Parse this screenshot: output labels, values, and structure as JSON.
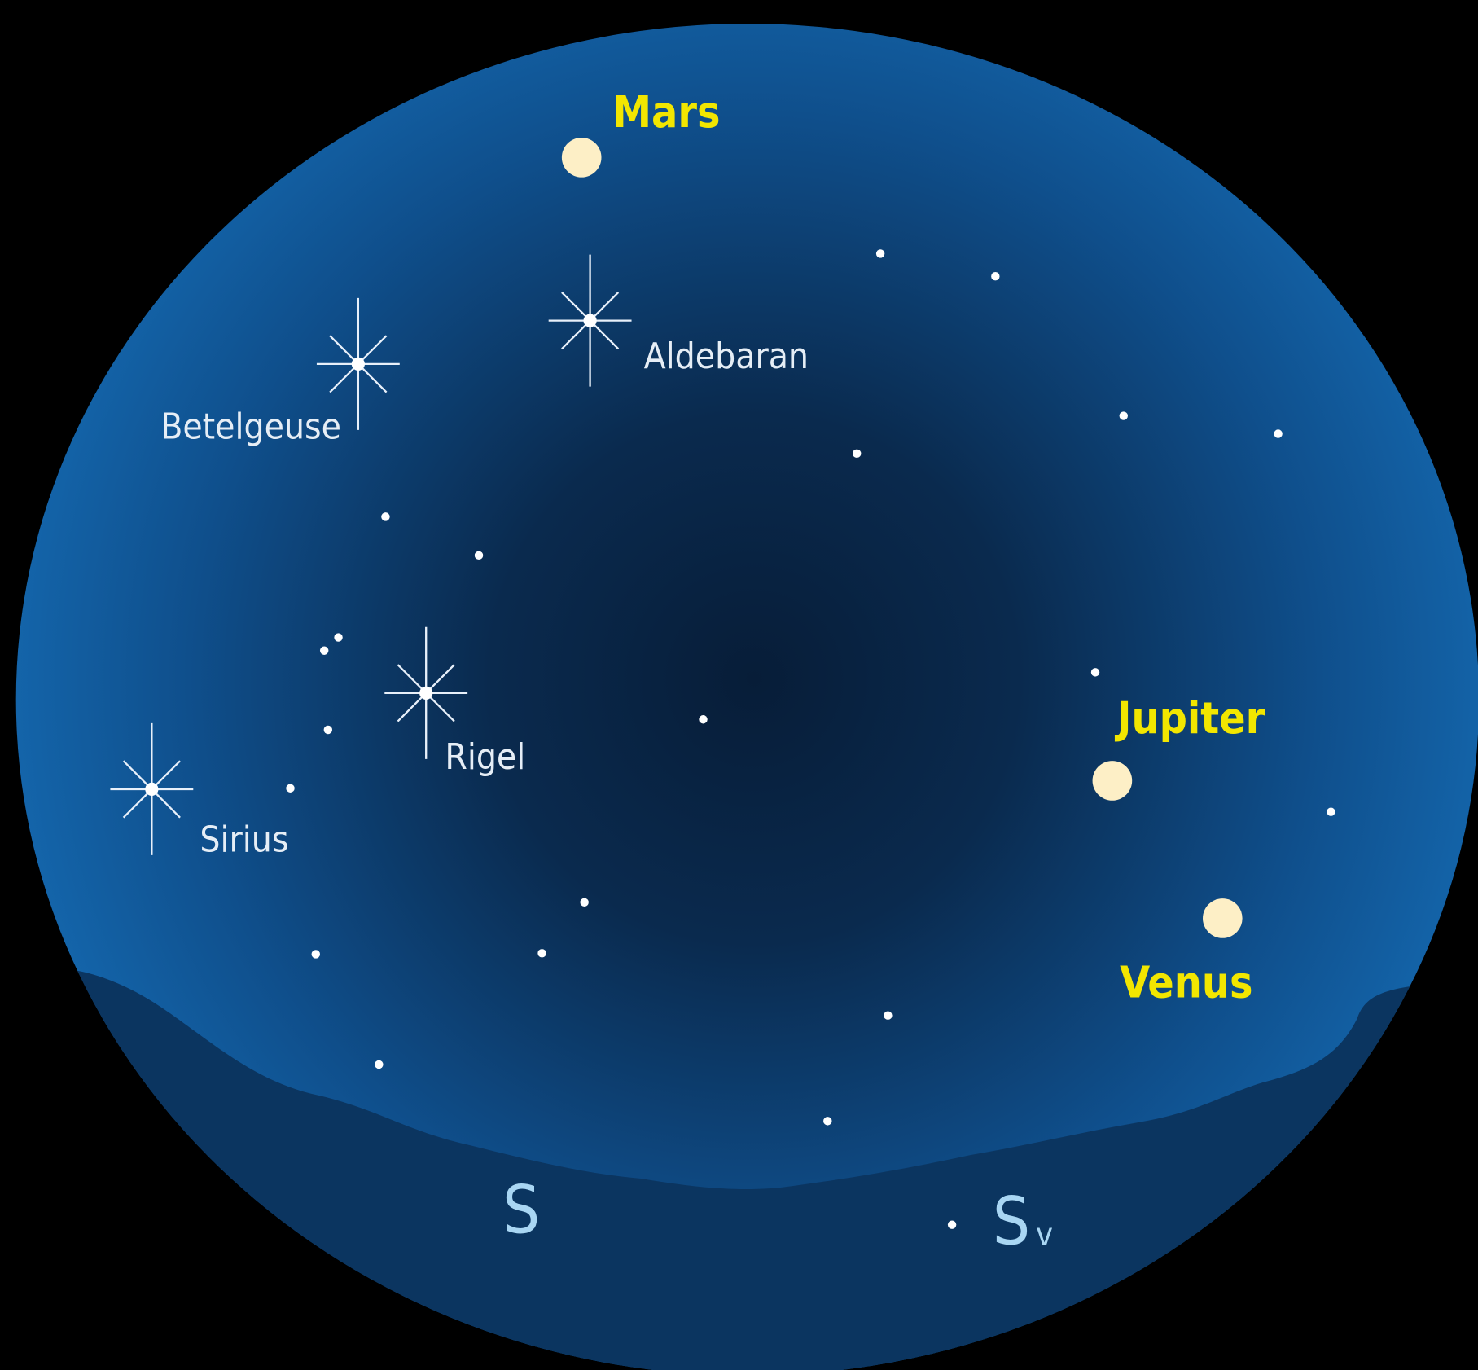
{
  "planets": [
    {
      "label": "Mars"
    },
    {
      "label": "Jupiter"
    },
    {
      "label": "Venus"
    }
  ],
  "stars": [
    {
      "label": "Aldebaran"
    },
    {
      "label": "Betelgeuse"
    },
    {
      "label": "Rigel"
    },
    {
      "label": "Sirius"
    }
  ],
  "directions": [
    {
      "label": "S"
    },
    {
      "label": "S",
      "sub": "v"
    }
  ]
}
